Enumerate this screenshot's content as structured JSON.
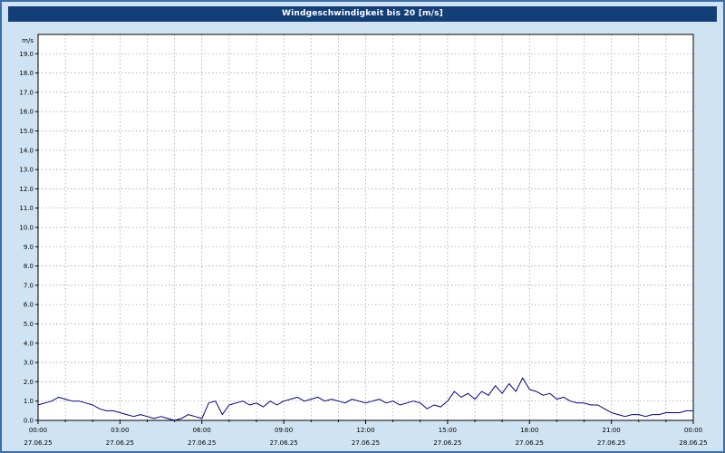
{
  "window": {
    "title": "Windgeschwindigkeit bis 20 [m/s]"
  },
  "colors": {
    "background": "#cfe3f3",
    "frame_border": "#3c6ea5",
    "titlebar_bg": "#123f77",
    "titlebar_text": "#ffffff",
    "plot_bg": "#ffffff",
    "plot_border": "#000000",
    "grid": "#9a9a9a",
    "line": "#000080",
    "text": "#000000"
  },
  "chart_data": {
    "type": "line",
    "title": "Windgeschwindigkeit bis 20 [m/s]",
    "unit_label": "m/s",
    "ylim": [
      0,
      20
    ],
    "ytick_interval": 1.0,
    "ytick_labels": [
      "0.0",
      "1.0",
      "2.0",
      "3.0",
      "4.0",
      "5.0",
      "6.0",
      "7.0",
      "8.0",
      "9.0",
      "10.0",
      "11.0",
      "12.0",
      "13.0",
      "14.0",
      "15.0",
      "16.0",
      "17.0",
      "18.0",
      "19.0"
    ],
    "x_hours_range": [
      0,
      24
    ],
    "grid": "dashed; vertical every hour, horizontal every 1 m/s",
    "legend_position": "none",
    "xticks": [
      {
        "hour": 0,
        "time": "00:00",
        "date": "27.06.25"
      },
      {
        "hour": 3,
        "time": "03:00",
        "date": "27.06.25"
      },
      {
        "hour": 6,
        "time": "06:00",
        "date": "27.06.25"
      },
      {
        "hour": 9,
        "time": "09:00",
        "date": "27.06.25"
      },
      {
        "hour": 12,
        "time": "12:00",
        "date": "27.06.25"
      },
      {
        "hour": 15,
        "time": "15:00",
        "date": "27.06.25"
      },
      {
        "hour": 18,
        "time": "18:00",
        "date": "27.06.25"
      },
      {
        "hour": 21,
        "time": "21:00",
        "date": "27.06.25"
      },
      {
        "hour": 24,
        "time": "00:00",
        "date": "28.06.25"
      }
    ],
    "series": [
      {
        "name": "Windgeschwindigkeit",
        "color": "#000080",
        "x_start_hour": 0,
        "x_step_hours": 0.25,
        "values": [
          0.8,
          0.9,
          1.0,
          1.2,
          1.1,
          1.0,
          1.0,
          0.9,
          0.8,
          0.6,
          0.5,
          0.5,
          0.4,
          0.3,
          0.2,
          0.3,
          0.2,
          0.1,
          0.2,
          0.1,
          0.0,
          0.1,
          0.3,
          0.2,
          0.1,
          0.9,
          1.0,
          0.3,
          0.8,
          0.9,
          1.0,
          0.8,
          0.9,
          0.7,
          1.0,
          0.8,
          1.0,
          1.1,
          1.2,
          1.0,
          1.1,
          1.2,
          1.0,
          1.1,
          1.0,
          0.9,
          1.1,
          1.0,
          0.9,
          1.0,
          1.1,
          0.9,
          1.0,
          0.8,
          0.9,
          1.0,
          0.9,
          0.6,
          0.8,
          0.7,
          1.0,
          1.5,
          1.2,
          1.4,
          1.1,
          1.5,
          1.3,
          1.8,
          1.4,
          1.9,
          1.5,
          2.2,
          1.6,
          1.5,
          1.3,
          1.4,
          1.1,
          1.2,
          1.0,
          0.9,
          0.9,
          0.8,
          0.8,
          0.6,
          0.4,
          0.3,
          0.2,
          0.3,
          0.3,
          0.2,
          0.3,
          0.3,
          0.4,
          0.4,
          0.4,
          0.5,
          0.5
        ]
      }
    ]
  }
}
